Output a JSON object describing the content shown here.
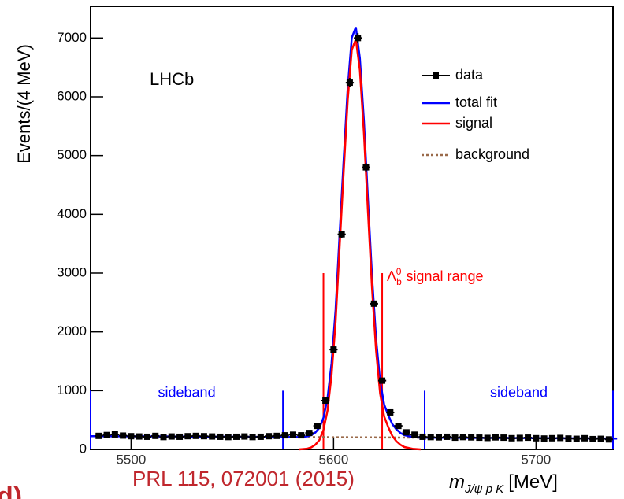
{
  "chart_data": {
    "type": "histfit",
    "y_label": "Events/(4 MeV)",
    "x_label": {
      "symbol": "m",
      "sub": "J/ψ p K",
      "unit": "[MeV]"
    },
    "experiment": "LHCb",
    "reference": "PRL 115, 072001 (2015)",
    "panel": "d)",
    "xlim": [
      5480,
      5738
    ],
    "ylim": [
      0,
      7540
    ],
    "xticks": [
      5500,
      5600,
      5700
    ],
    "yticks": [
      0,
      1000,
      2000,
      3000,
      4000,
      5000,
      6000,
      7000
    ],
    "legend": "top-right",
    "data": {
      "name": "data",
      "color": "#000000",
      "x": [
        5484,
        5488,
        5492,
        5496,
        5500,
        5504,
        5508,
        5512,
        5516,
        5520,
        5524,
        5528,
        5532,
        5536,
        5540,
        5544,
        5548,
        5552,
        5556,
        5560,
        5564,
        5568,
        5572,
        5576,
        5580,
        5584,
        5588,
        5592,
        5596,
        5600,
        5604,
        5608,
        5612,
        5616,
        5620,
        5624,
        5628,
        5632,
        5636,
        5640,
        5644,
        5648,
        5652,
        5656,
        5660,
        5664,
        5668,
        5672,
        5676,
        5680,
        5684,
        5688,
        5692,
        5696,
        5700,
        5704,
        5708,
        5712,
        5716,
        5720,
        5724,
        5728,
        5732,
        5736
      ],
      "values": [
        230,
        245,
        255,
        235,
        225,
        220,
        215,
        230,
        210,
        220,
        215,
        225,
        230,
        225,
        220,
        215,
        210,
        215,
        220,
        210,
        215,
        225,
        230,
        240,
        250,
        240,
        280,
        400,
        830,
        1700,
        3660,
        6240,
        7000,
        4800,
        2480,
        1170,
        630,
        400,
        290,
        250,
        215,
        210,
        205,
        215,
        200,
        210,
        205,
        200,
        195,
        205,
        200,
        190,
        195,
        200,
        190,
        185,
        190,
        195,
        185,
        180,
        190,
        175,
        180,
        170
      ]
    },
    "series": [
      {
        "name": "total fit",
        "color": "#0000ff",
        "style": "solid",
        "x": [
          5480,
          5520,
          5560,
          5583,
          5587,
          5589,
          5591,
          5593,
          5595,
          5597,
          5599,
          5601,
          5603,
          5605,
          5607,
          5609,
          5611,
          5613,
          5615,
          5617,
          5619,
          5621,
          5623,
          5625,
          5627,
          5629,
          5631,
          5633,
          5635,
          5639,
          5643,
          5680,
          5740
        ],
        "values": [
          225,
          219,
          213,
          209,
          220,
          243,
          288,
          367,
          537,
          867,
          1467,
          2376,
          3666,
          4936,
          6155,
          7005,
          7185,
          6654,
          5584,
          4244,
          2943,
          1883,
          1153,
          763,
          582,
          432,
          342,
          281,
          241,
          210,
          200,
          194,
          185
        ]
      },
      {
        "name": "signal",
        "color": "#ff0000",
        "style": "solid",
        "x": [
          5583,
          5587,
          5589,
          5591,
          5593,
          5595,
          5597,
          5599,
          5601,
          5603,
          5605,
          5607,
          5609,
          5611,
          5613,
          5615,
          5617,
          5619,
          5621,
          5623,
          5625,
          5627,
          5629,
          5631,
          5633,
          5635,
          5639,
          5643
        ],
        "values": [
          0,
          12,
          35,
          80,
          160,
          330,
          660,
          1260,
          2170,
          3460,
          4730,
          5950,
          6800,
          6980,
          6450,
          5380,
          4040,
          2740,
          1680,
          950,
          560,
          380,
          230,
          140,
          80,
          40,
          10,
          0
        ]
      },
      {
        "name": "background",
        "color": "#9a6a4a",
        "style": "dotted",
        "x": [
          5480,
          5740
        ],
        "values": [
          225,
          185
        ]
      }
    ],
    "signal_range": {
      "symbol": "Λ",
      "sub": "b",
      "sup": "0",
      "text": "signal range",
      "color": "#ff0000",
      "x": [
        5595,
        5624
      ],
      "top": 3000
    },
    "sidebands": {
      "label": "sideband",
      "color": "#0000ff",
      "x": [
        5480,
        5575,
        5645,
        5738
      ],
      "top": 1000
    }
  }
}
